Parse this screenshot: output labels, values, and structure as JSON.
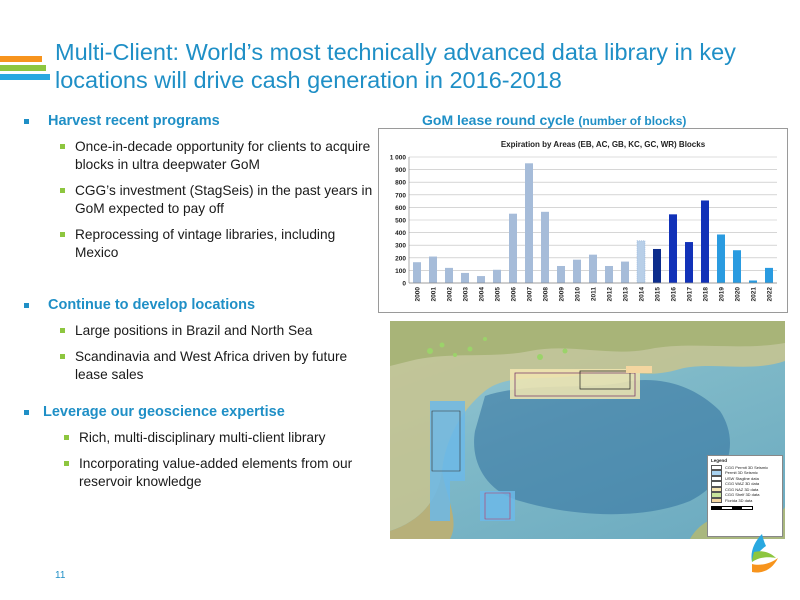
{
  "colors": {
    "title_blue": "#1f8fc6",
    "stripe_1": "#f7941d",
    "stripe_2": "#8dc63f",
    "stripe_3": "#29a8e0",
    "bullet_blue": "#1f8fc6",
    "bullet_green": "#8dc63f"
  },
  "slide": {
    "title": "Multi-Client: World’s most technically advanced data library in key locations will drive cash generation in 2016-2018",
    "page_number": "11"
  },
  "bullets": [
    {
      "heading": "Harvest recent programs",
      "items": [
        "Once-in-decade opportunity for clients to acquire blocks in ultra deepwater GoM",
        "CGG’s investment (StagSeis) in the past years in GoM expected to pay off",
        "Reprocessing of vintage libraries, including Mexico"
      ]
    },
    {
      "heading": "Continue to develop locations",
      "items": [
        "Large positions in Brazil and North Sea",
        "Scandinavia and West Africa driven by future lease sales"
      ]
    },
    {
      "heading": "Leverage our geoscience expertise",
      "items": [
        "Rich, multi-disciplinary multi-client library",
        "Incorporating value-added elements from our reservoir knowledge"
      ]
    }
  ],
  "chart_heading": {
    "main": "GoM lease round cycle",
    "paren": "(number of blocks)"
  },
  "chart_data": {
    "type": "bar",
    "title": "Expiration by Areas (EB, AC, GB, KC, GC, WR) Blocks",
    "categories": [
      "2000",
      "2001",
      "2002",
      "2003",
      "2004",
      "2005",
      "2006",
      "2007",
      "2008",
      "2009",
      "2010",
      "2011",
      "2012",
      "2013",
      "2014",
      "2015",
      "2016",
      "2017",
      "2018",
      "2019",
      "2020",
      "2021",
      "2022"
    ],
    "values": [
      165,
      210,
      120,
      80,
      55,
      105,
      550,
      950,
      565,
      135,
      185,
      225,
      135,
      170,
      335,
      270,
      545,
      325,
      655,
      385,
      260,
      20,
      120
    ],
    "bar_colors": [
      "#a6bcd9",
      "#a6bcd9",
      "#a6bcd9",
      "#a6bcd9",
      "#a6bcd9",
      "#a6bcd9",
      "#a6bcd9",
      "#a6bcd9",
      "#a6bcd9",
      "#a6bcd9",
      "#a6bcd9",
      "#a6bcd9",
      "#a6bcd9",
      "#a6bcd9",
      "#b8cfe8",
      "#0d2d8c",
      "#1232b8",
      "#1232b8",
      "#1232b8",
      "#2a9be0",
      "#2a9be0",
      "#2a9be0",
      "#2a9be0"
    ],
    "yticks": [
      "0",
      "100",
      "200",
      "300",
      "400",
      "500",
      "600",
      "700",
      "800",
      "900",
      "1 000"
    ],
    "ylim": [
      0,
      1000
    ],
    "grid": true,
    "legend": false
  },
  "map": {
    "legend_title": "Legend",
    "legend_items": [
      {
        "label": "CGG Permit 3D Seismic",
        "color": "#ffffff"
      },
      {
        "label": "Permit 3D Seismic",
        "color": "#a9d2f0"
      },
      {
        "label": "USW Stagline data",
        "color": "#ffffff"
      },
      {
        "label": "CGG WAZ 3D data",
        "color": "#ffffff"
      },
      {
        "label": "CGG NAZ 3D data",
        "color": "#f5e6b3"
      },
      {
        "label": "CGG Shelf 3D data",
        "color": "#c8e39c"
      },
      {
        "label": "Florida 3D data",
        "color": "#f4d6a0"
      }
    ]
  }
}
